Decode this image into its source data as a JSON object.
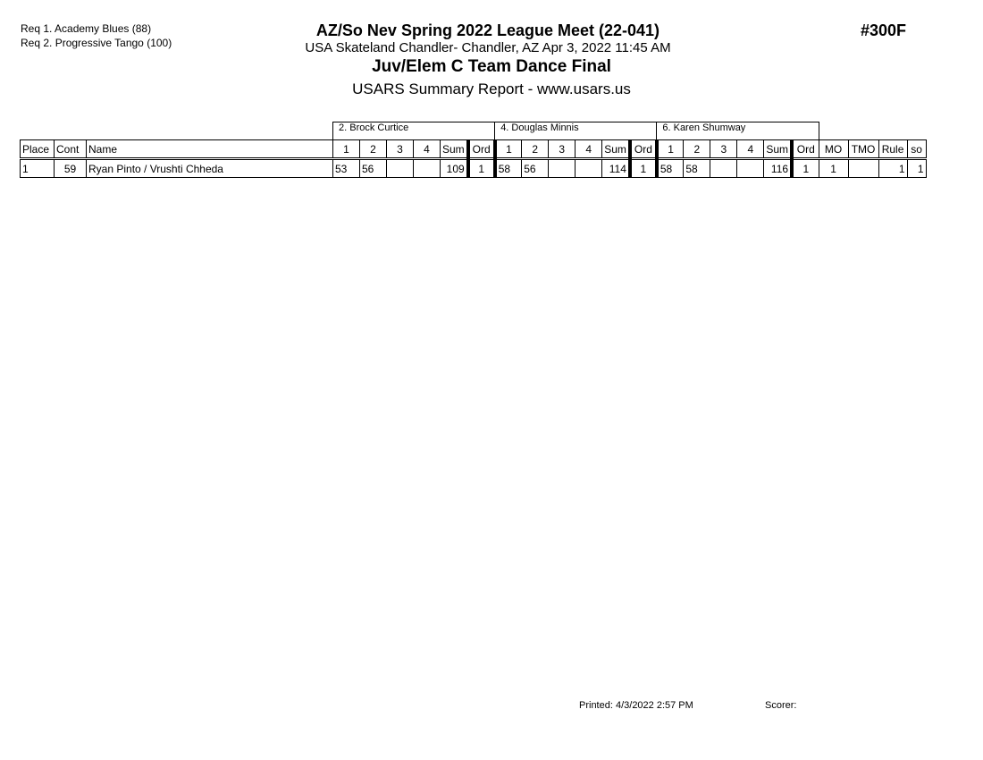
{
  "requirements": [
    "Req  1.  Academy Blues (88)",
    "Req  2.  Progressive Tango (100)"
  ],
  "title": "AZ/So Nev Spring 2022 League Meet (22-041)",
  "venue_line": "USA Skateland Chandler- Chandler, AZ  Apr 3, 2022  11:45 AM",
  "event_name": "Juv/Elem C Team Dance Final",
  "report_title": "USARS Summary Report - www.usars.us",
  "event_number": "#300F",
  "judges": [
    "2.  Brock Curtice",
    "4.  Douglas Minnis",
    "6.  Karen Shumway"
  ],
  "columns": {
    "place": "Place",
    "cont": "Cont",
    "name": "Name",
    "judge_cols": [
      "1",
      "2",
      "3",
      "4",
      "Sum",
      "Ord"
    ],
    "mo": "MO",
    "tmo": "TMO",
    "rule": "Rule",
    "so": "so"
  },
  "rows": [
    {
      "place": "1",
      "cont": "59",
      "name": "Ryan Pinto / Vrushti Chheda",
      "judges": [
        [
          "53",
          "56",
          "",
          "",
          "109",
          "1"
        ],
        [
          "58",
          "56",
          "",
          "",
          "114",
          "1"
        ],
        [
          "58",
          "58",
          "",
          "",
          "116",
          "1"
        ]
      ],
      "mo": "1",
      "tmo": "",
      "rule": "1",
      "so": "1"
    }
  ],
  "footer": {
    "printed": "Printed:  4/3/2022  2:57 PM",
    "scorer": "Scorer:"
  }
}
